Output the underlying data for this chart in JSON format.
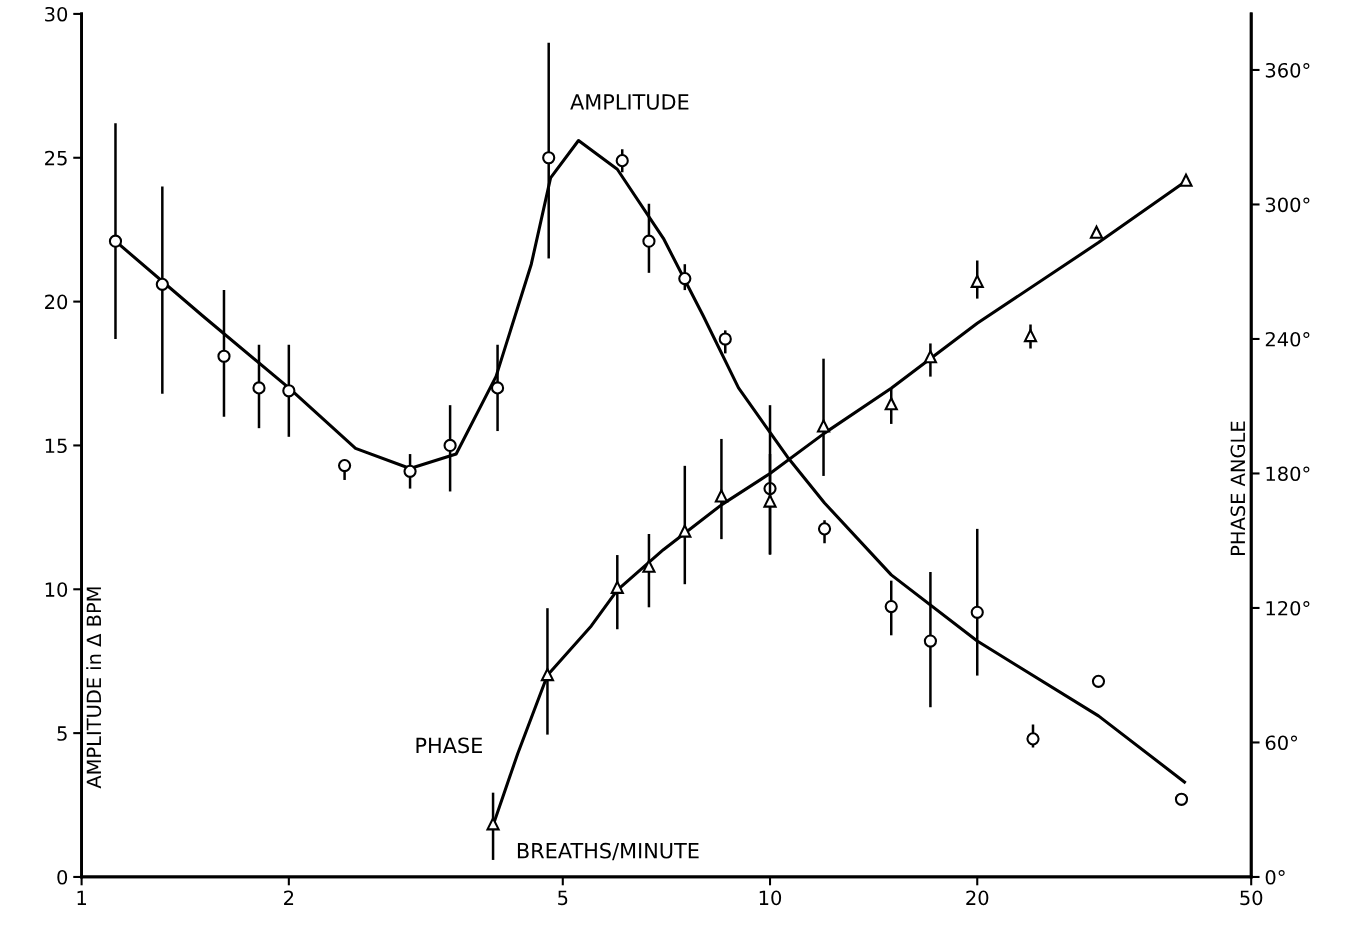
{
  "chart_data": {
    "type": "scatter",
    "xlabel": "BREATHS/MINUTE",
    "ylabel": "AMPLITUDE in Δ BPM",
    "y2label": "PHASE ANGLE",
    "log": "x",
    "xlim": [
      1,
      50
    ],
    "xticks": [
      1,
      2,
      5,
      10,
      20,
      50
    ],
    "ylim": [
      0,
      30
    ],
    "yticks": [
      0,
      5,
      10,
      15,
      20,
      25,
      30
    ],
    "y2lim": [
      0,
      385
    ],
    "y2ticks": [
      {
        "value": 0,
        "label": "0°"
      },
      {
        "value": 60,
        "label": "60°"
      },
      {
        "value": 120,
        "label": "120°"
      },
      {
        "value": 180,
        "label": "180°"
      },
      {
        "value": 240,
        "label": "240°"
      },
      {
        "value": 300,
        "label": "300°"
      },
      {
        "value": 360,
        "label": "360°"
      }
    ],
    "grid": false,
    "legend": false,
    "annotations": [
      "AMPLITUDE",
      "PHASE"
    ],
    "series": [
      {
        "color": "#000000",
        "marker": "circle",
        "x": [
          1.12,
          1.31,
          1.61,
          1.81,
          2.0,
          2.41,
          3.0,
          3.43,
          4.02,
          4.77,
          6.1,
          6.67,
          7.52,
          8.61,
          10,
          12.0,
          15.0,
          17.1,
          20,
          24.1,
          30.0,
          39.6
        ],
        "values": [
          22.1,
          20.6,
          18.1,
          17.0,
          16.9,
          14.3,
          14.1,
          15.0,
          17.0,
          25.0,
          24.9,
          22.1,
          20.8,
          18.7,
          13.5,
          12.1,
          9.4,
          8.2,
          9.2,
          4.8,
          6.8,
          2.7
        ],
        "errors": [
          [
            18.7,
            26.2
          ],
          [
            16.8,
            24.0
          ],
          [
            16.0,
            20.4
          ],
          [
            15.6,
            18.5
          ],
          [
            15.3,
            18.5
          ],
          [
            13.8,
            14.5
          ],
          [
            13.5,
            14.7
          ],
          [
            13.4,
            16.4
          ],
          [
            15.5,
            18.5
          ],
          [
            21.5,
            29.0
          ],
          [
            24.5,
            25.3
          ],
          [
            21.0,
            23.4
          ],
          [
            20.4,
            21.3
          ],
          [
            18.2,
            19.0
          ],
          [
            11.2,
            16.4
          ],
          [
            11.6,
            12.4
          ],
          [
            8.4,
            10.3
          ],
          [
            5.9,
            10.6
          ],
          [
            7.0,
            12.1
          ],
          [
            4.5,
            5.3
          ],
          null,
          null
        ]
      },
      {
        "type": "line",
        "color": "#000000",
        "marker": "none",
        "line_style": "solid",
        "x": [
          1.12,
          1.5,
          2,
          2.5,
          3,
          3.5,
          4,
          4.5,
          4.8,
          5.27,
          6,
          7,
          8,
          9,
          10.6,
          12,
          15,
          20,
          30,
          40
        ],
        "values": [
          22.1,
          19.5,
          17.0,
          14.9,
          14.2,
          14.7,
          17.4,
          21.3,
          24.3,
          25.6,
          24.6,
          22.2,
          19.5,
          17.0,
          14.6,
          13.0,
          10.5,
          8.2,
          5.6,
          3.3
        ]
      },
      {
        "axis": "y2",
        "color": "#000000",
        "marker": "triangle",
        "x": [
          3.96,
          4.75,
          6.0,
          6.67,
          7.52,
          8.5,
          10,
          11.96,
          15.0,
          17.1,
          20,
          23.9,
          29.8,
          40.2
        ],
        "values": [
          23.7,
          90.3,
          129.2,
          138.6,
          154.3,
          170,
          167.7,
          201.2,
          211.1,
          232.1,
          265.7,
          241.5,
          287.6,
          310.8
        ],
        "errors": [
          [
            7.6,
            37.6
          ],
          [
            63.5,
            119.9
          ],
          [
            110.5,
            143.6
          ],
          [
            120.3,
            153
          ],
          [
            130.6,
            183.4
          ],
          [
            150.7,
            195.4
          ],
          [
            144,
            188.7
          ],
          [
            178.9,
            231.2
          ],
          [
            202.1,
            217.8
          ],
          [
            223.2,
            238
          ],
          [
            258,
            275
          ],
          [
            235.7,
            246.4
          ],
          null,
          null
        ]
      },
      {
        "type": "line",
        "axis": "y2",
        "color": "#000000",
        "marker": "none",
        "line_style": "solid",
        "x": [
          3.96,
          4.3,
          4.75,
          5.5,
          6,
          7,
          8.5,
          10,
          12,
          15,
          20,
          30,
          40
        ],
        "values": [
          23,
          55,
          90,
          112,
          128,
          146,
          166,
          180,
          198,
          218,
          247,
          283,
          310
        ]
      }
    ]
  }
}
